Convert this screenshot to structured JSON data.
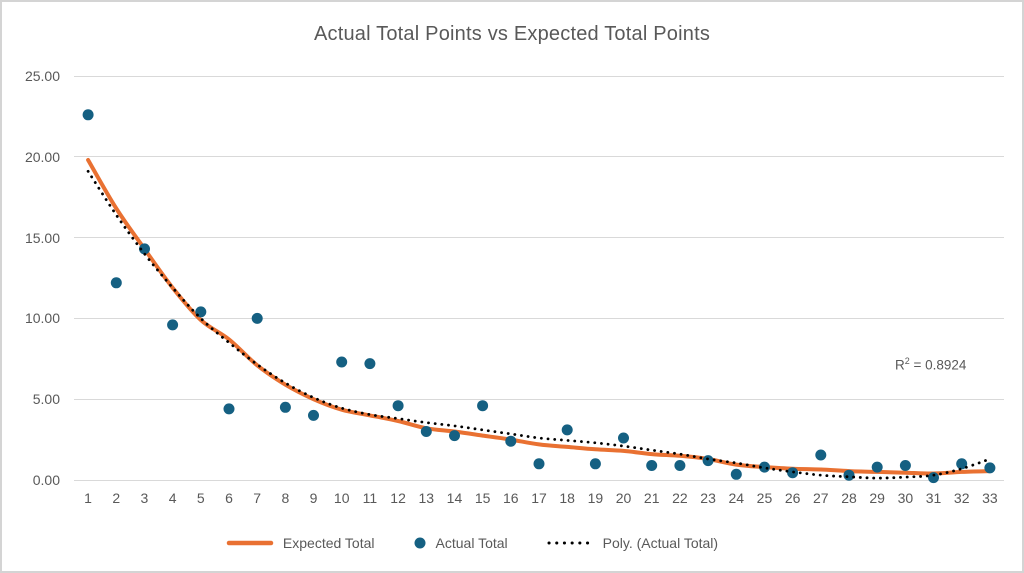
{
  "chart": {
    "title": "Actual Total Points vs Expected Total Points"
  },
  "chart_data": {
    "type": "scatter",
    "title": "Actual Total Points vs Expected Total Points",
    "xlabel": "",
    "ylabel": "",
    "x": [
      1,
      2,
      3,
      4,
      5,
      6,
      7,
      8,
      9,
      10,
      11,
      12,
      13,
      14,
      15,
      16,
      17,
      18,
      19,
      20,
      21,
      22,
      23,
      24,
      25,
      26,
      27,
      28,
      29,
      30,
      31,
      32,
      33
    ],
    "ylim": [
      0,
      25
    ],
    "ytick_labels": [
      "25.00",
      "20.00",
      "15.00",
      "10.00",
      "5.00",
      "0.00"
    ],
    "grid": true,
    "legend_position": "bottom",
    "r_squared": 0.8924,
    "annotation": {
      "base": "R",
      "exponent": "2",
      "rest": " = 0.8924"
    },
    "series": [
      {
        "name": "Expected Total",
        "type": "line",
        "color": "#E97132",
        "values": [
          19.8,
          16.8,
          14.3,
          11.9,
          9.9,
          8.7,
          7.1,
          5.9,
          5.0,
          4.35,
          4.0,
          3.65,
          3.2,
          3.0,
          2.75,
          2.5,
          2.2,
          2.05,
          1.9,
          1.8,
          1.6,
          1.5,
          1.3,
          0.95,
          0.8,
          0.7,
          0.65,
          0.55,
          0.5,
          0.45,
          0.4,
          0.5,
          0.55
        ]
      },
      {
        "name": "Actual Total",
        "type": "scatter",
        "color": "#156082",
        "values": [
          22.6,
          12.2,
          14.3,
          9.6,
          10.4,
          4.4,
          10.0,
          4.5,
          4.0,
          7.3,
          7.2,
          4.6,
          3.0,
          2.75,
          4.6,
          2.4,
          1.0,
          3.1,
          1.0,
          2.6,
          0.9,
          0.9,
          1.2,
          0.35,
          0.8,
          0.45,
          1.55,
          0.3,
          0.8,
          0.9,
          0.15,
          1.0,
          0.75
        ]
      },
      {
        "name": "Poly. (Actual Total)",
        "type": "trendline-dotted",
        "color": "#000000",
        "values": [
          19.1,
          16.4,
          14.0,
          11.9,
          10.0,
          8.5,
          7.15,
          6.0,
          5.1,
          4.45,
          4.05,
          3.8,
          3.55,
          3.35,
          3.1,
          2.85,
          2.6,
          2.45,
          2.3,
          2.1,
          1.85,
          1.6,
          1.3,
          1.05,
          0.75,
          0.5,
          0.3,
          0.2,
          0.12,
          0.18,
          0.3,
          0.7,
          1.3
        ]
      }
    ]
  }
}
